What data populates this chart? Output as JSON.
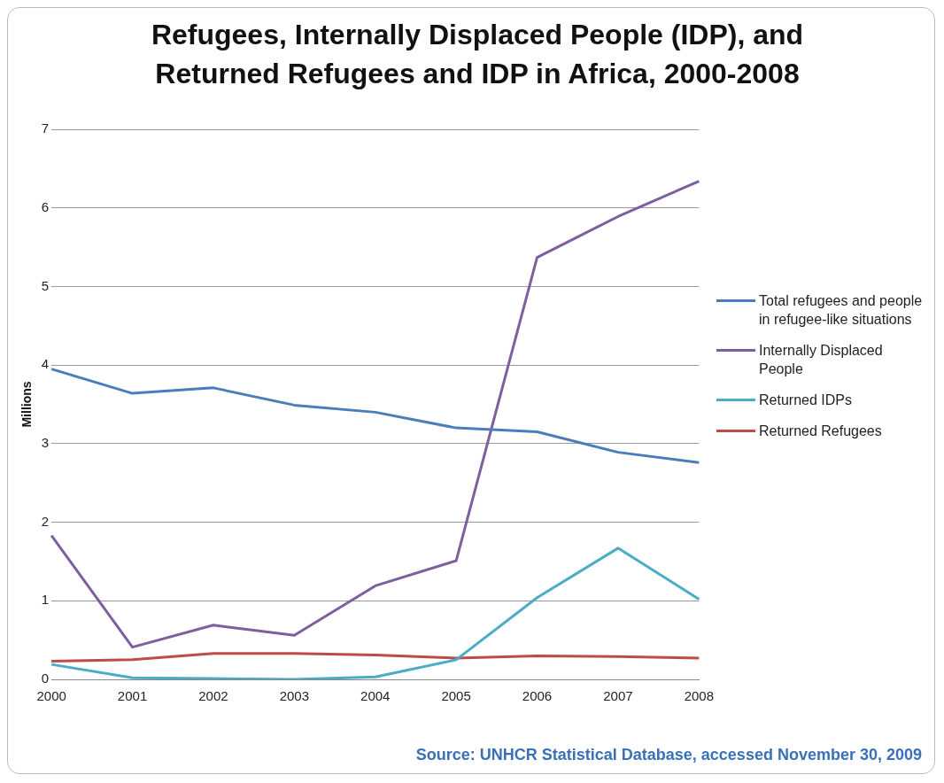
{
  "chart_data": {
    "type": "line",
    "title": "Refugees, Internally Displaced People (IDP), and Returned Refugees and IDP in Africa, 2000-2008",
    "ylabel": "Millions",
    "categories": [
      "2000",
      "2001",
      "2002",
      "2003",
      "2004",
      "2005",
      "2006",
      "2007",
      "2008"
    ],
    "series": [
      {
        "name": "Total refugees and people in refugee-like situations",
        "color": "#4a7ebb",
        "values": [
          3.95,
          3.64,
          3.71,
          3.49,
          3.4,
          3.2,
          3.15,
          2.89,
          2.76
        ]
      },
      {
        "name": "Internally Displaced People",
        "color": "#7d5fa0",
        "values": [
          1.83,
          0.41,
          0.69,
          0.56,
          1.19,
          1.51,
          5.37,
          5.89,
          6.34
        ]
      },
      {
        "name": "Returned IDPs",
        "color": "#4bacc6",
        "values": [
          0.19,
          0.02,
          0.01,
          0,
          0.03,
          0.25,
          1.04,
          1.67,
          1.02
        ]
      },
      {
        "name": "Returned Refugees",
        "color": "#be4b48",
        "values": [
          0.23,
          0.25,
          0.33,
          0.33,
          0.31,
          0.27,
          0.3,
          0.29,
          0.27
        ]
      }
    ],
    "ylim": [
      0,
      7
    ],
    "yticks": [
      0,
      1,
      2,
      3,
      4,
      5,
      6,
      7
    ],
    "grid": "y",
    "legend": "right",
    "marker": "none",
    "line_style": "solid",
    "annotations": [
      "Source: UNHCR Statistical Database, accessed November 30, 2009"
    ]
  }
}
